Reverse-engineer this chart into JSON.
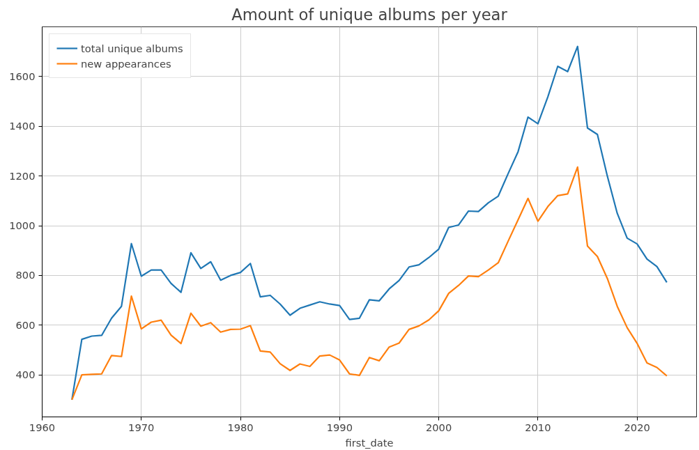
{
  "chart_data": {
    "type": "line",
    "title": "Amount of unique albums per year",
    "xlabel": "first_date",
    "x": [
      1963,
      1964,
      1965,
      1966,
      1967,
      1968,
      1969,
      1970,
      1971,
      1972,
      1973,
      1974,
      1975,
      1976,
      1977,
      1978,
      1979,
      1980,
      1981,
      1982,
      1983,
      1984,
      1985,
      1986,
      1987,
      1988,
      1989,
      1990,
      1991,
      1992,
      1993,
      1994,
      1995,
      1996,
      1997,
      1998,
      1999,
      2000,
      2001,
      2002,
      2003,
      2004,
      2005,
      2006,
      2007,
      2008,
      2009,
      2010,
      2011,
      2012,
      2013,
      2014,
      2015,
      2016,
      2017,
      2018,
      2019,
      2020,
      2021,
      2022,
      2023
    ],
    "series": [
      {
        "name": "total unique albums",
        "color": "#1f77b4",
        "values": [
          300,
          543,
          556,
          559,
          628,
          676,
          928,
          797,
          822,
          822,
          768,
          732,
          891,
          828,
          855,
          781,
          800,
          812,
          848,
          714,
          720,
          685,
          640,
          668,
          681,
          694,
          685,
          679,
          623,
          628,
          702,
          698,
          746,
          780,
          834,
          843,
          872,
          906,
          993,
          1003,
          1059,
          1057,
          1092,
          1119,
          1210,
          1298,
          1437,
          1410,
          1518,
          1641,
          1620,
          1721,
          1393,
          1367,
          1200,
          1050,
          950,
          927,
          866,
          836,
          772
        ]
      },
      {
        "name": "new appearances",
        "color": "#ff7f0e",
        "values": [
          300,
          400,
          402,
          404,
          478,
          474,
          717,
          585,
          612,
          620,
          560,
          526,
          648,
          596,
          610,
          572,
          583,
          584,
          598,
          496,
          492,
          445,
          418,
          444,
          434,
          476,
          480,
          460,
          404,
          398,
          470,
          457,
          512,
          528,
          583,
          597,
          621,
          658,
          728,
          760,
          798,
          795,
          822,
          851,
          938,
          1024,
          1110,
          1018,
          1077,
          1121,
          1128,
          1236,
          918,
          876,
          788,
          676,
          590,
          527,
          448,
          430,
          396
        ]
      }
    ],
    "xlim": [
      1960,
      2026
    ],
    "xticks": [
      1960,
      1970,
      1980,
      1990,
      2000,
      2010,
      2020
    ],
    "ylim": [
      231,
      1800
    ],
    "yticks": [
      400,
      600,
      800,
      1000,
      1200,
      1400,
      1600
    ],
    "grid": true,
    "legend": "top left",
    "line_style": "solid",
    "marker": "none"
  }
}
